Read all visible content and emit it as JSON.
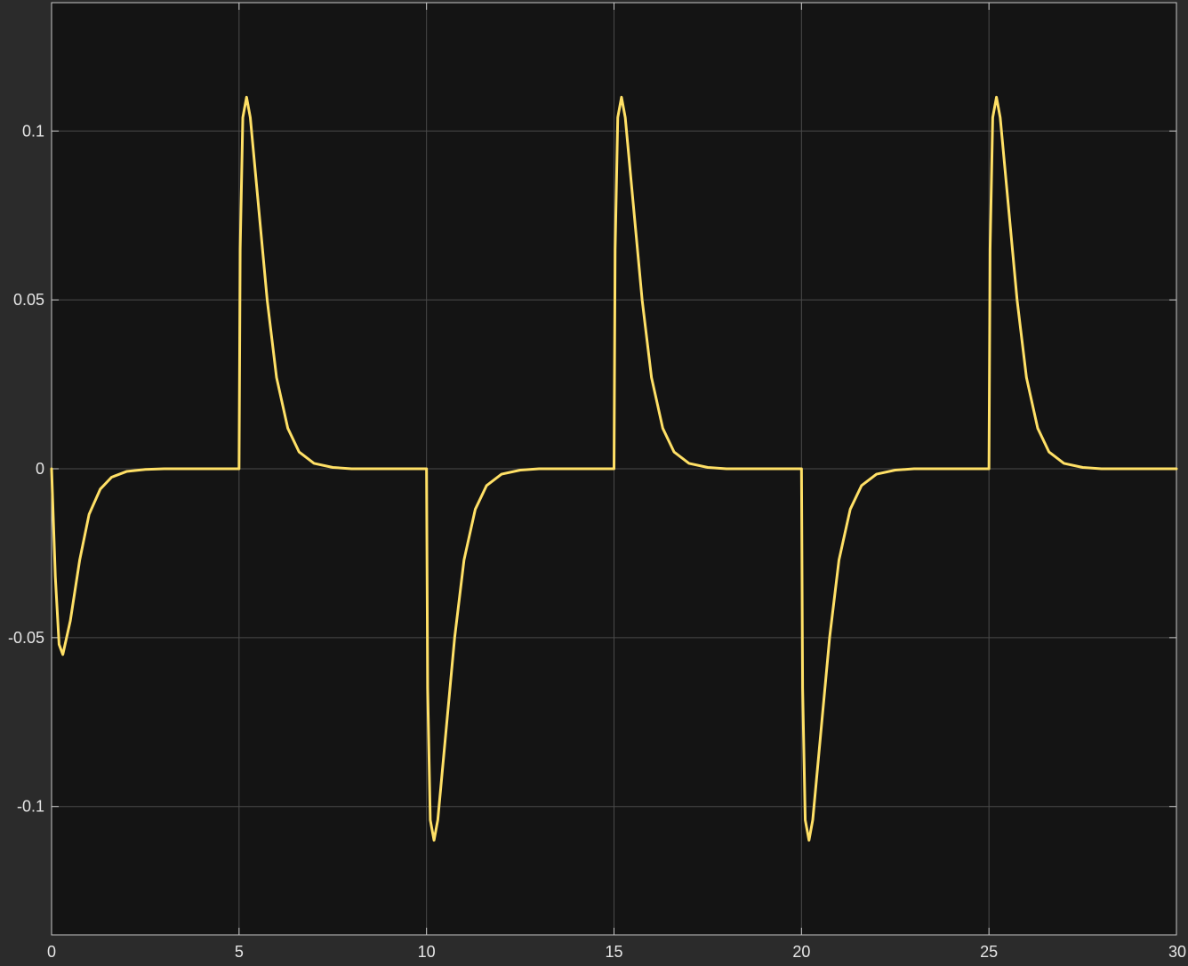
{
  "colors": {
    "background": "#2b2b2b",
    "plot_area": "#141414",
    "grid": "#4a4a4a",
    "axis": "#c8c8c8",
    "tick_label": "#e6e6e6",
    "line": "#ffe066"
  },
  "chart_data": {
    "type": "line",
    "title": "",
    "xlabel": "",
    "ylabel": "",
    "xlim": [
      0,
      30
    ],
    "ylim": [
      -0.138,
      0.138
    ],
    "grid": true,
    "legend": "none",
    "x_ticks": [
      0,
      5,
      10,
      15,
      20,
      25,
      30
    ],
    "x_tick_labels": [
      "0",
      "5",
      "10",
      "15",
      "20",
      "25",
      "30"
    ],
    "y_ticks": [
      -0.1,
      -0.05,
      0,
      0.05,
      0.1
    ],
    "y_tick_labels": [
      "-0.1",
      "-0.05",
      "0",
      "0.05",
      "0.1"
    ],
    "series": [
      {
        "color": "#ffe066",
        "x": [
          0,
          0.1,
          0.2,
          0.3,
          0.5,
          0.75,
          1.0,
          1.3,
          1.6,
          2.0,
          2.5,
          3.0,
          5.0,
          5.03,
          5.1,
          5.2,
          5.3,
          5.5,
          5.75,
          6.0,
          6.3,
          6.6,
          7.0,
          7.5,
          8.0,
          10.0,
          10.03,
          10.1,
          10.2,
          10.3,
          10.5,
          10.75,
          11.0,
          11.3,
          11.6,
          12.0,
          12.5,
          13.0,
          15.0,
          15.03,
          15.1,
          15.2,
          15.3,
          15.5,
          15.75,
          16.0,
          16.3,
          16.6,
          17.0,
          17.5,
          18.0,
          20.0,
          20.03,
          20.1,
          20.2,
          20.3,
          20.5,
          20.75,
          21.0,
          21.3,
          21.6,
          22.0,
          22.5,
          23.0,
          25.0,
          25.03,
          25.1,
          25.2,
          25.3,
          25.5,
          25.75,
          26.0,
          26.3,
          26.6,
          27.0,
          27.5,
          28.0,
          30.0
        ],
        "y": [
          0,
          -0.032,
          -0.052,
          -0.055,
          -0.045,
          -0.027,
          -0.0135,
          -0.006,
          -0.0025,
          -0.0008,
          -0.0002,
          0,
          0,
          0.065,
          0.104,
          0.11,
          0.104,
          0.08,
          0.05,
          0.027,
          0.012,
          0.005,
          0.0016,
          0.0004,
          0,
          0,
          -0.065,
          -0.104,
          -0.11,
          -0.104,
          -0.08,
          -0.05,
          -0.027,
          -0.012,
          -0.005,
          -0.0016,
          -0.0004,
          0,
          0,
          0.065,
          0.104,
          0.11,
          0.104,
          0.08,
          0.05,
          0.027,
          0.012,
          0.005,
          0.0016,
          0.0004,
          0,
          0,
          -0.065,
          -0.104,
          -0.11,
          -0.104,
          -0.08,
          -0.05,
          -0.027,
          -0.012,
          -0.005,
          -0.0016,
          -0.0004,
          0,
          0,
          0.065,
          0.104,
          0.11,
          0.104,
          0.08,
          0.05,
          0.027,
          0.012,
          0.005,
          0.0016,
          0.0004,
          0,
          0
        ]
      }
    ]
  }
}
